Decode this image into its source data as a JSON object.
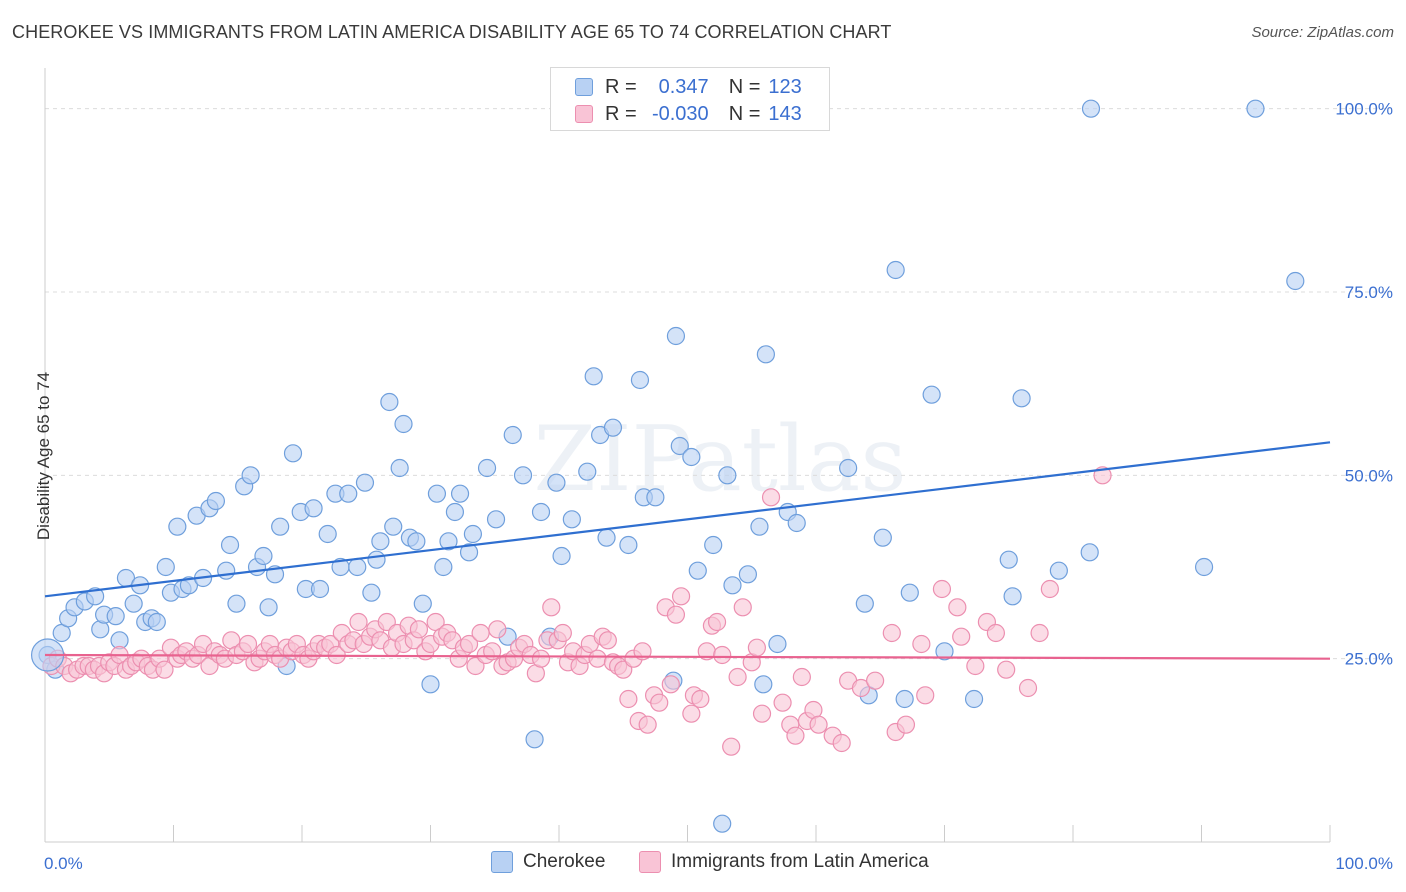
{
  "title": "CHEROKEE VS IMMIGRANTS FROM LATIN AMERICA DISABILITY AGE 65 TO 74 CORRELATION CHART",
  "source": "Source: ZipAtlas.com",
  "watermark": "ZIPatlas",
  "legend": {
    "r_label": "R =",
    "n_label": "N =",
    "rows": [
      {
        "r": "0.347",
        "n": "123",
        "color": "#6f9fdc"
      },
      {
        "r": "-0.030",
        "n": "143",
        "color": "#ec8fb0"
      }
    ]
  },
  "bottom_legend": [
    {
      "label": "Cherokee",
      "color": "#b8d1f3"
    },
    {
      "label": "Immigrants from Latin America",
      "color": "#f9c4d6"
    }
  ],
  "chart_data": {
    "type": "scatter",
    "ylabel": "Disability Age 65 to 74",
    "xlabel": "",
    "xlim": [
      0,
      100
    ],
    "ylim": [
      0,
      105
    ],
    "x_tick_labels": [
      "0.0%",
      "100.0%"
    ],
    "y_ticks": [
      25,
      50,
      75,
      100
    ],
    "y_tick_labels": [
      "25.0%",
      "50.0%",
      "75.0%",
      "100.0%"
    ],
    "grid": "horizontal dashed",
    "legend_position": "top-center",
    "series": [
      {
        "name": "Cherokee",
        "color": "#6f9fdc",
        "fill": "#b8d1f3",
        "trend": {
          "x": [
            0,
            100
          ],
          "y": [
            33.5,
            54.5
          ],
          "color": "#2f6fd0"
        },
        "points": [
          [
            0.2,
            25.5
          ],
          [
            0.8,
            23.5
          ],
          [
            1.3,
            28.5
          ],
          [
            1.8,
            30.5
          ],
          [
            2.3,
            32
          ],
          [
            3.1,
            32.8
          ],
          [
            3.9,
            33.5
          ],
          [
            4.3,
            29
          ],
          [
            4.6,
            31
          ],
          [
            5.5,
            30.8
          ],
          [
            5.8,
            27.5
          ],
          [
            6.3,
            36
          ],
          [
            6.9,
            32.5
          ],
          [
            7.4,
            35
          ],
          [
            7.8,
            30
          ],
          [
            8.3,
            30.5
          ],
          [
            8.7,
            30
          ],
          [
            9.4,
            37.5
          ],
          [
            9.8,
            34
          ],
          [
            10.3,
            43
          ],
          [
            10.7,
            34.5
          ],
          [
            11.2,
            35
          ],
          [
            11.8,
            44.5
          ],
          [
            12.3,
            36
          ],
          [
            12.8,
            45.5
          ],
          [
            13.3,
            46.5
          ],
          [
            14.1,
            37
          ],
          [
            14.4,
            40.5
          ],
          [
            14.9,
            32.5
          ],
          [
            15.5,
            48.5
          ],
          [
            16.0,
            50
          ],
          [
            16.5,
            37.5
          ],
          [
            17.0,
            39
          ],
          [
            17.4,
            32
          ],
          [
            17.9,
            36.5
          ],
          [
            18.3,
            43
          ],
          [
            18.8,
            24
          ],
          [
            19.3,
            53
          ],
          [
            19.9,
            45
          ],
          [
            20.3,
            34.5
          ],
          [
            20.9,
            45.5
          ],
          [
            21.4,
            34.5
          ],
          [
            22.0,
            42
          ],
          [
            22.6,
            47.5
          ],
          [
            23.0,
            37.5
          ],
          [
            23.6,
            47.5
          ],
          [
            24.3,
            37.5
          ],
          [
            24.9,
            49
          ],
          [
            25.4,
            34
          ],
          [
            25.8,
            38.5
          ],
          [
            26.1,
            41
          ],
          [
            26.8,
            60
          ],
          [
            27.1,
            43
          ],
          [
            27.6,
            51
          ],
          [
            27.9,
            57
          ],
          [
            28.4,
            41.5
          ],
          [
            28.9,
            41
          ],
          [
            29.4,
            32.5
          ],
          [
            30.0,
            21.5
          ],
          [
            30.5,
            47.5
          ],
          [
            31.0,
            37.5
          ],
          [
            31.4,
            41
          ],
          [
            31.9,
            45
          ],
          [
            32.3,
            47.5
          ],
          [
            33.3,
            42
          ],
          [
            33.0,
            39.5
          ],
          [
            34.4,
            51
          ],
          [
            35.1,
            44
          ],
          [
            36.0,
            28
          ],
          [
            36.4,
            55.5
          ],
          [
            37.2,
            50
          ],
          [
            38.1,
            14
          ],
          [
            38.6,
            45
          ],
          [
            39.3,
            28
          ],
          [
            39.8,
            49
          ],
          [
            40.2,
            39
          ],
          [
            41.0,
            44
          ],
          [
            42.2,
            50.5
          ],
          [
            42.7,
            63.5
          ],
          [
            43.2,
            55.5
          ],
          [
            43.7,
            41.5
          ],
          [
            44.2,
            56.5
          ],
          [
            45.4,
            40.5
          ],
          [
            46.3,
            63
          ],
          [
            46.6,
            47
          ],
          [
            47.5,
            47
          ],
          [
            48.9,
            22
          ],
          [
            49.1,
            69
          ],
          [
            49.4,
            54
          ],
          [
            50.3,
            52.5
          ],
          [
            50.8,
            37
          ],
          [
            52.0,
            40.5
          ],
          [
            52.7,
            2.5
          ],
          [
            53.1,
            50
          ],
          [
            53.5,
            35
          ],
          [
            54.7,
            36.5
          ],
          [
            55.6,
            43
          ],
          [
            55.9,
            21.5
          ],
          [
            56.1,
            66.5
          ],
          [
            57.0,
            27
          ],
          [
            57.8,
            45
          ],
          [
            58.5,
            43.5
          ],
          [
            62.5,
            51
          ],
          [
            63.8,
            32.5
          ],
          [
            64.1,
            20
          ],
          [
            65.2,
            41.5
          ],
          [
            66.2,
            78
          ],
          [
            66.9,
            19.5
          ],
          [
            67.3,
            34
          ],
          [
            69.0,
            61
          ],
          [
            70.0,
            26
          ],
          [
            72.3,
            19.5
          ],
          [
            75.0,
            38.5
          ],
          [
            75.3,
            33.5
          ],
          [
            76.0,
            60.5
          ],
          [
            78.9,
            37
          ],
          [
            81.3,
            39.5
          ],
          [
            81.4,
            100
          ],
          [
            90.2,
            37.5
          ],
          [
            94.2,
            100
          ],
          [
            97.3,
            76.5
          ]
        ]
      },
      {
        "name": "Immigrants from Latin America",
        "color": "#ec8fb0",
        "fill": "#f9c4d6",
        "trend": {
          "x": [
            0,
            100
          ],
          "y": [
            25.5,
            25
          ],
          "color": "#e8628f"
        },
        "points": [
          [
            0.5,
            24
          ],
          [
            1.0,
            25
          ],
          [
            1.5,
            24
          ],
          [
            2.0,
            23
          ],
          [
            2.5,
            23.5
          ],
          [
            3.0,
            24
          ],
          [
            3.4,
            24
          ],
          [
            3.8,
            23.5
          ],
          [
            4.2,
            24
          ],
          [
            4.6,
            23
          ],
          [
            5.0,
            24.5
          ],
          [
            5.4,
            24
          ],
          [
            5.8,
            25.5
          ],
          [
            6.3,
            23.5
          ],
          [
            6.7,
            24
          ],
          [
            7.1,
            24.5
          ],
          [
            7.5,
            25
          ],
          [
            8.0,
            24
          ],
          [
            8.4,
            23.5
          ],
          [
            8.9,
            25
          ],
          [
            9.3,
            23.5
          ],
          [
            9.8,
            26.5
          ],
          [
            10.3,
            25
          ],
          [
            10.6,
            25.5
          ],
          [
            11.0,
            26
          ],
          [
            11.5,
            25
          ],
          [
            11.9,
            25.5
          ],
          [
            12.3,
            27
          ],
          [
            12.8,
            24
          ],
          [
            13.2,
            26
          ],
          [
            13.6,
            25.5
          ],
          [
            14.0,
            25
          ],
          [
            14.5,
            27.5
          ],
          [
            14.9,
            25.5
          ],
          [
            15.4,
            26
          ],
          [
            15.8,
            27
          ],
          [
            16.3,
            24.5
          ],
          [
            16.7,
            25
          ],
          [
            17.1,
            26
          ],
          [
            17.5,
            27
          ],
          [
            17.9,
            25.5
          ],
          [
            18.3,
            25
          ],
          [
            18.8,
            26.5
          ],
          [
            19.2,
            26
          ],
          [
            19.6,
            27
          ],
          [
            20.1,
            25.5
          ],
          [
            20.5,
            25
          ],
          [
            20.9,
            26
          ],
          [
            21.3,
            27
          ],
          [
            21.8,
            26.5
          ],
          [
            22.2,
            27
          ],
          [
            22.7,
            25.5
          ],
          [
            23.1,
            28.5
          ],
          [
            23.6,
            27
          ],
          [
            24.0,
            27.5
          ],
          [
            24.4,
            30
          ],
          [
            24.8,
            27
          ],
          [
            25.3,
            28
          ],
          [
            25.7,
            29
          ],
          [
            26.1,
            27.5
          ],
          [
            26.6,
            30
          ],
          [
            27.0,
            26.5
          ],
          [
            27.4,
            28.5
          ],
          [
            27.9,
            27
          ],
          [
            28.3,
            29.5
          ],
          [
            28.7,
            27.5
          ],
          [
            29.1,
            29
          ],
          [
            29.6,
            26
          ],
          [
            30.0,
            27
          ],
          [
            30.4,
            30
          ],
          [
            30.9,
            28
          ],
          [
            31.3,
            28.5
          ],
          [
            31.7,
            27.5
          ],
          [
            32.2,
            25
          ],
          [
            32.6,
            26.5
          ],
          [
            33.0,
            27
          ],
          [
            33.5,
            24
          ],
          [
            33.9,
            28.5
          ],
          [
            34.3,
            25.5
          ],
          [
            34.8,
            26
          ],
          [
            35.2,
            29
          ],
          [
            35.6,
            24
          ],
          [
            36.0,
            24.5
          ],
          [
            36.5,
            25
          ],
          [
            36.9,
            26.5
          ],
          [
            37.3,
            27
          ],
          [
            37.8,
            25.5
          ],
          [
            38.2,
            23
          ],
          [
            38.6,
            25
          ],
          [
            39.1,
            27.5
          ],
          [
            39.4,
            32
          ],
          [
            39.9,
            27.5
          ],
          [
            40.3,
            28.5
          ],
          [
            40.7,
            24.5
          ],
          [
            41.1,
            26
          ],
          [
            41.6,
            24
          ],
          [
            42.0,
            25.5
          ],
          [
            42.4,
            27
          ],
          [
            43.0,
            25
          ],
          [
            43.4,
            28
          ],
          [
            43.8,
            27.5
          ],
          [
            44.2,
            24.5
          ],
          [
            44.6,
            24
          ],
          [
            45.0,
            23.5
          ],
          [
            45.4,
            19.5
          ],
          [
            45.8,
            25
          ],
          [
            46.2,
            16.5
          ],
          [
            46.5,
            26
          ],
          [
            46.9,
            16
          ],
          [
            47.4,
            20
          ],
          [
            47.8,
            19
          ],
          [
            48.3,
            32
          ],
          [
            48.7,
            21.5
          ],
          [
            49.1,
            31
          ],
          [
            49.5,
            33.5
          ],
          [
            50.3,
            17.5
          ],
          [
            50.5,
            20
          ],
          [
            51.0,
            19.5
          ],
          [
            51.5,
            26
          ],
          [
            51.9,
            29.5
          ],
          [
            52.3,
            30
          ],
          [
            52.7,
            25.5
          ],
          [
            53.4,
            13
          ],
          [
            53.9,
            22.5
          ],
          [
            54.3,
            32
          ],
          [
            55.0,
            24.5
          ],
          [
            55.4,
            26.5
          ],
          [
            55.8,
            17.5
          ],
          [
            56.5,
            47
          ],
          [
            57.4,
            19
          ],
          [
            58.0,
            16
          ],
          [
            58.4,
            14.5
          ],
          [
            58.9,
            22.5
          ],
          [
            59.3,
            16.5
          ],
          [
            59.8,
            18
          ],
          [
            60.2,
            16
          ],
          [
            61.3,
            14.5
          ],
          [
            62.0,
            13.5
          ],
          [
            62.5,
            22
          ],
          [
            63.5,
            21
          ],
          [
            64.6,
            22
          ],
          [
            65.9,
            28.5
          ],
          [
            66.2,
            15
          ],
          [
            67.0,
            16
          ],
          [
            68.2,
            27
          ],
          [
            68.5,
            20
          ],
          [
            69.8,
            34.5
          ],
          [
            71.0,
            32
          ],
          [
            71.3,
            28
          ],
          [
            72.4,
            24
          ],
          [
            73.3,
            30
          ],
          [
            74.0,
            28.5
          ],
          [
            74.8,
            23.5
          ],
          [
            76.5,
            21
          ],
          [
            77.4,
            28.5
          ],
          [
            78.2,
            34.5
          ],
          [
            82.3,
            50
          ]
        ]
      }
    ]
  }
}
